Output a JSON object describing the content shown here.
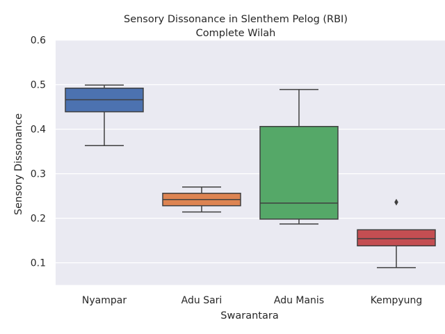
{
  "chart_data": {
    "type": "box",
    "title_line1": "Sensory Dissonance in Slenthem Pelog (RBI)",
    "title_line2": "Complete Wilah",
    "xlabel": "Swarantara",
    "ylabel": "Sensory Dissonance",
    "ylim": [
      0.05,
      0.6
    ],
    "yticks": [
      "0.1",
      "0.2",
      "0.3",
      "0.4",
      "0.5",
      "0.6"
    ],
    "grid": true,
    "categories": [
      "Nyampar",
      "Adu Sari",
      "Adu Manis",
      "Kempyung"
    ],
    "boxes": [
      {
        "name": "Nyampar",
        "color": "#4c72b0",
        "whisker_low": 0.363,
        "q1": 0.439,
        "median": 0.466,
        "q3": 0.492,
        "whisker_high": 0.499,
        "outliers": []
      },
      {
        "name": "Adu Sari",
        "color": "#dd8452",
        "whisker_low": 0.214,
        "q1": 0.228,
        "median": 0.242,
        "q3": 0.256,
        "whisker_high": 0.27,
        "outliers": []
      },
      {
        "name": "Adu Manis",
        "color": "#55a868",
        "whisker_low": 0.187,
        "q1": 0.198,
        "median": 0.234,
        "q3": 0.406,
        "whisker_high": 0.489,
        "outliers": []
      },
      {
        "name": "Kempyung",
        "color": "#c44e52",
        "whisker_low": 0.089,
        "q1": 0.138,
        "median": 0.154,
        "q3": 0.174,
        "whisker_high": 0.174,
        "outliers": [
          0.236
        ]
      }
    ]
  }
}
